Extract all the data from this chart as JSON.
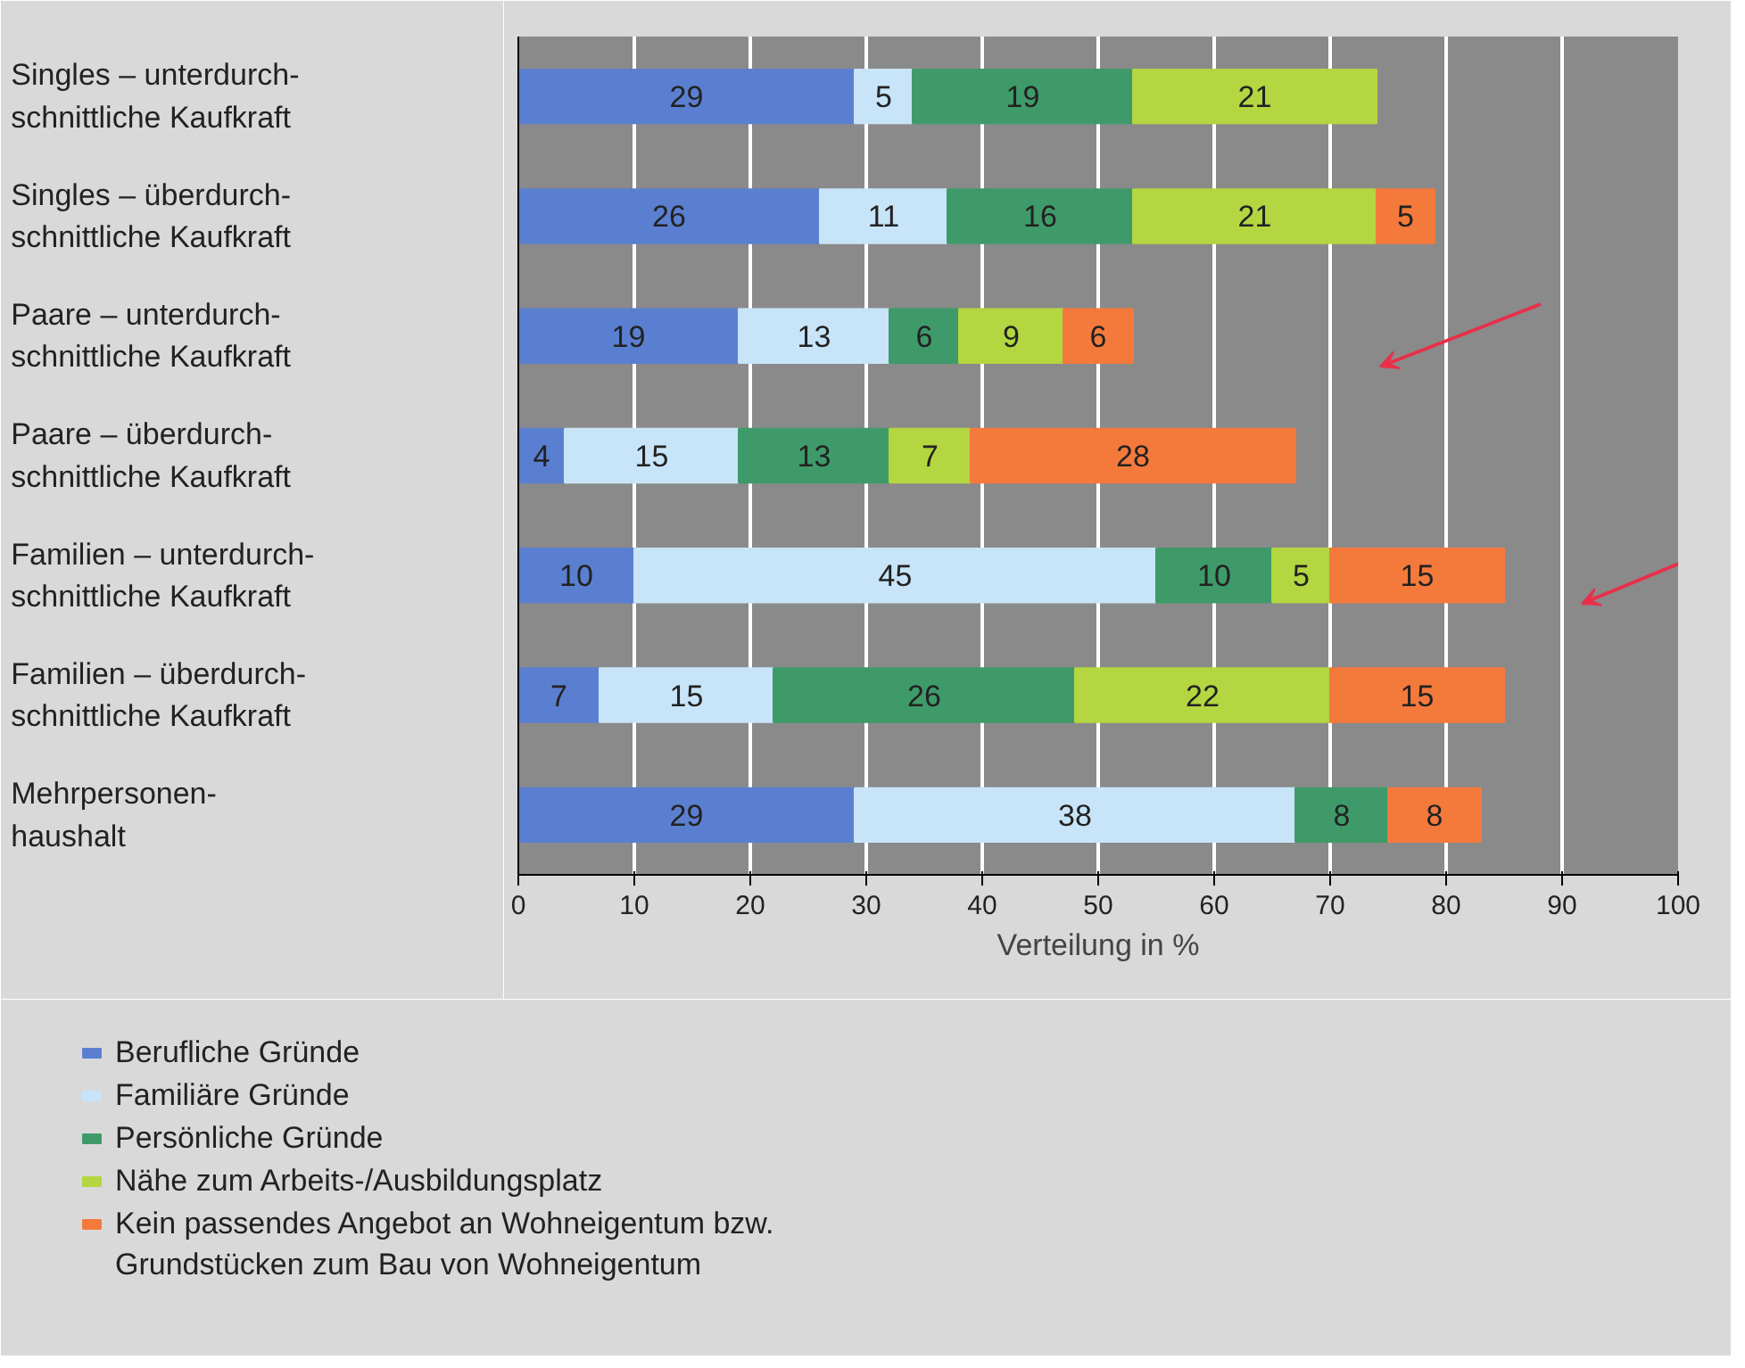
{
  "chart_data": {
    "type": "bar",
    "orientation": "horizontal",
    "stacked": true,
    "categories": [
      "Singles – unterdurch-\nschnittliche Kaufkraft",
      "Singles – überdurch-\nschnittliche Kaufkraft",
      "Paare – unterdurch-\nschnittliche Kaufkraft",
      "Paare – überdurch-\nschnittliche Kaufkraft",
      "Familien – unterdurch-\nschnittliche Kaufkraft",
      "Familien – überdurch-\nschnittliche Kaufkraft",
      "Mehrpersonen-\nhaushalt"
    ],
    "series": [
      {
        "name": "Berufliche Gründe",
        "color": "#5b7fd0",
        "values": [
          29,
          26,
          19,
          4,
          10,
          7,
          29
        ]
      },
      {
        "name": "Familiäre Gründe",
        "color": "#c8e4f8",
        "values": [
          5,
          11,
          13,
          15,
          45,
          15,
          38
        ]
      },
      {
        "name": "Persönliche Gründe",
        "color": "#3f9a6a",
        "values": [
          19,
          16,
          6,
          13,
          10,
          26,
          8
        ]
      },
      {
        "name": "Nähe zum Arbeits-/Ausbildungsplatz",
        "color": "#b4d640",
        "values": [
          21,
          21,
          9,
          7,
          5,
          22,
          null
        ]
      },
      {
        "name": "Kein passendes Angebot an Wohneigentum bzw.\nGrundstücken zum Bau von Wohneigentum",
        "color": "#f47a3c",
        "values": [
          null,
          5,
          6,
          28,
          15,
          15,
          8
        ]
      }
    ],
    "xlim": [
      0,
      100
    ],
    "xticks": [
      0,
      10,
      20,
      30,
      40,
      50,
      60,
      70,
      80,
      90,
      100
    ],
    "xlabel": "Verteilung in %",
    "grid": "x",
    "legend": "bottom",
    "data_labels": true
  }
}
